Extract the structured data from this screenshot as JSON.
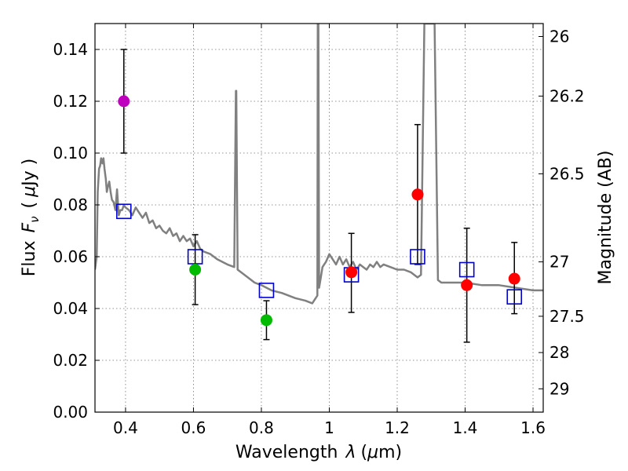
{
  "chart_data": {
    "type": "scatter",
    "xlabel": "Wavelength",
    "xlabel_symbol": "λ",
    "xlabel_units_prefix": "(",
    "xlabel_units_mu": "μ",
    "xlabel_units_suffix": "m)",
    "ylabel": "Flux",
    "ylabel_symbol": "F",
    "ylabel_subscript": "ν",
    "ylabel_units_prefix": "(",
    "ylabel_units_mu": "μ",
    "ylabel_units_suffix": "Jy )",
    "y2label": "Magnitude (AB)",
    "xlim": [
      0.31,
      1.63
    ],
    "ylim": [
      0.0,
      0.15
    ],
    "grid": true,
    "x_ticks": [
      {
        "value": 0.4,
        "label": "0.4"
      },
      {
        "value": 0.6,
        "label": "0.6"
      },
      {
        "value": 0.8,
        "label": "0.8"
      },
      {
        "value": 1.0,
        "label": "1"
      },
      {
        "value": 1.2,
        "label": "1.2"
      },
      {
        "value": 1.4,
        "label": "1.4"
      },
      {
        "value": 1.6,
        "label": "1.6"
      }
    ],
    "y_ticks": [
      {
        "value": 0.0,
        "label": "0.00"
      },
      {
        "value": 0.02,
        "label": "0.02"
      },
      {
        "value": 0.04,
        "label": "0.04"
      },
      {
        "value": 0.06,
        "label": "0.06"
      },
      {
        "value": 0.08,
        "label": "0.08"
      },
      {
        "value": 0.1,
        "label": "0.10"
      },
      {
        "value": 0.12,
        "label": "0.12"
      },
      {
        "value": 0.14,
        "label": "0.14"
      }
    ],
    "y2_ticks": [
      {
        "flux": 0.145,
        "label": "26"
      },
      {
        "flux": 0.122,
        "label": "26.2"
      },
      {
        "flux": 0.092,
        "label": "26.5"
      },
      {
        "flux": 0.058,
        "label": "27"
      },
      {
        "flux": 0.037,
        "label": "27.5"
      },
      {
        "flux": 0.023,
        "label": "28"
      },
      {
        "flux": 0.009,
        "label": "29"
      }
    ],
    "colors": {
      "model": "#808080",
      "model_points": "#0000cc",
      "magenta": "#bf00bf",
      "green": "#00bb00",
      "red": "#ff0000",
      "errorbar": "#000000"
    },
    "model_sed": {
      "x": [
        0.31,
        0.315,
        0.318,
        0.322,
        0.325,
        0.328,
        0.332,
        0.335,
        0.338,
        0.342,
        0.345,
        0.348,
        0.352,
        0.356,
        0.36,
        0.365,
        0.37,
        0.375,
        0.38,
        0.385,
        0.39,
        0.395,
        0.4,
        0.41,
        0.42,
        0.43,
        0.44,
        0.45,
        0.46,
        0.47,
        0.48,
        0.49,
        0.5,
        0.51,
        0.52,
        0.53,
        0.54,
        0.55,
        0.56,
        0.57,
        0.58,
        0.59,
        0.6,
        0.61,
        0.62,
        0.63,
        0.65,
        0.67,
        0.7,
        0.72,
        0.725,
        0.726,
        0.73,
        0.74,
        0.76,
        0.78,
        0.8,
        0.83,
        0.86,
        0.9,
        0.93,
        0.95,
        0.965,
        0.966,
        0.968,
        0.97,
        0.975,
        0.98,
        0.99,
        1.0,
        1.01,
        1.02,
        1.03,
        1.04,
        1.05,
        1.06,
        1.07,
        1.08,
        1.09,
        1.1,
        1.11,
        1.12,
        1.13,
        1.14,
        1.15,
        1.16,
        1.18,
        1.2,
        1.22,
        1.24,
        1.26,
        1.27,
        1.28,
        1.29,
        1.3,
        1.31,
        1.32,
        1.33,
        1.35,
        1.4,
        1.45,
        1.5,
        1.55,
        1.6,
        1.63
      ],
      "y": [
        0.055,
        0.06,
        0.085,
        0.094,
        0.095,
        0.098,
        0.096,
        0.098,
        0.094,
        0.09,
        0.085,
        0.087,
        0.089,
        0.085,
        0.082,
        0.081,
        0.078,
        0.086,
        0.076,
        0.078,
        0.078,
        0.08,
        0.079,
        0.078,
        0.076,
        0.079,
        0.077,
        0.075,
        0.077,
        0.073,
        0.074,
        0.071,
        0.072,
        0.07,
        0.069,
        0.071,
        0.068,
        0.069,
        0.066,
        0.068,
        0.066,
        0.067,
        0.064,
        0.066,
        0.063,
        0.062,
        0.061,
        0.059,
        0.057,
        0.056,
        0.124,
        0.124,
        0.055,
        0.054,
        0.052,
        0.05,
        0.049,
        0.047,
        0.046,
        0.044,
        0.043,
        0.042,
        0.045,
        0.15,
        0.15,
        0.048,
        0.052,
        0.056,
        0.058,
        0.061,
        0.059,
        0.057,
        0.06,
        0.057,
        0.059,
        0.056,
        0.058,
        0.055,
        0.057,
        0.056,
        0.055,
        0.057,
        0.056,
        0.058,
        0.056,
        0.057,
        0.056,
        0.055,
        0.055,
        0.054,
        0.052,
        0.053,
        0.15,
        0.15,
        0.15,
        0.15,
        0.051,
        0.05,
        0.05,
        0.05,
        0.049,
        0.049,
        0.048,
        0.047,
        0.047
      ]
    },
    "model_points": [
      {
        "x": 0.395,
        "y": 0.0775
      },
      {
        "x": 0.605,
        "y": 0.06
      },
      {
        "x": 0.815,
        "y": 0.047
      },
      {
        "x": 1.065,
        "y": 0.053
      },
      {
        "x": 1.26,
        "y": 0.06
      },
      {
        "x": 1.405,
        "y": 0.055
      },
      {
        "x": 1.545,
        "y": 0.0445
      }
    ],
    "observed": [
      {
        "x": 0.395,
        "y": 0.12,
        "ylow": 0.1,
        "yhigh": 0.14,
        "color": "magenta"
      },
      {
        "x": 0.605,
        "y": 0.055,
        "ylow": 0.0415,
        "yhigh": 0.0685,
        "color": "green"
      },
      {
        "x": 0.815,
        "y": 0.0355,
        "ylow": 0.028,
        "yhigh": 0.043,
        "color": "green"
      },
      {
        "x": 1.065,
        "y": 0.054,
        "ylow": 0.0385,
        "yhigh": 0.069,
        "color": "red"
      },
      {
        "x": 1.26,
        "y": 0.084,
        "ylow": 0.057,
        "yhigh": 0.111,
        "color": "red"
      },
      {
        "x": 1.405,
        "y": 0.049,
        "ylow": 0.027,
        "yhigh": 0.071,
        "color": "red"
      },
      {
        "x": 1.545,
        "y": 0.0515,
        "ylow": 0.038,
        "yhigh": 0.0655,
        "color": "red"
      }
    ]
  }
}
